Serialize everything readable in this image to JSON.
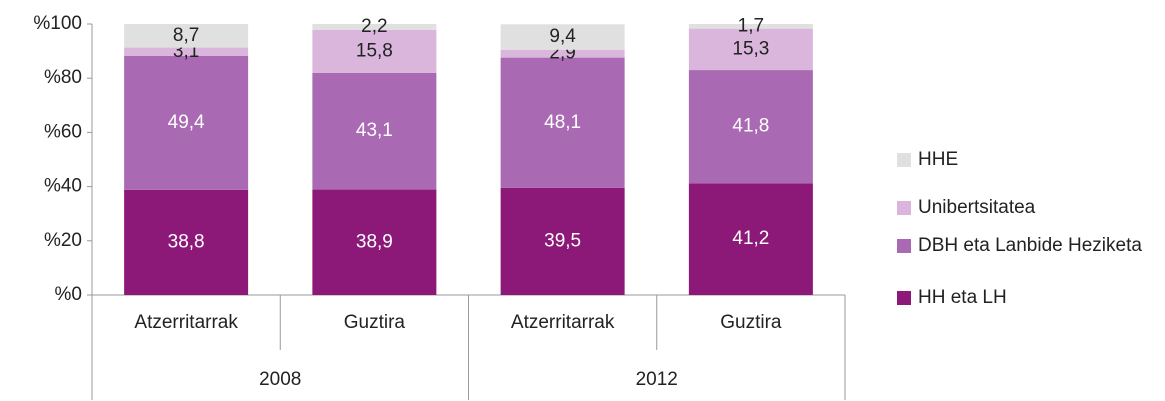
{
  "chart_data": {
    "type": "stacked_bar",
    "categories": [
      "Atzerritarrak",
      "Guztira",
      "Atzerritarrak",
      "Guztira"
    ],
    "groups": [
      "2008",
      "2012"
    ],
    "series": [
      {
        "name": "HH eta LH",
        "color": "#8c1878",
        "values": [
          38.8,
          38.9,
          39.5,
          41.2
        ],
        "value_labels": [
          "38,8",
          "38,9",
          "39,5",
          "41,2"
        ]
      },
      {
        "name": "DBH eta Lanbide Heziketa",
        "color": "#aa6ab3",
        "values": [
          49.4,
          43.1,
          48.1,
          41.8
        ],
        "value_labels": [
          "49,4",
          "43,1",
          "48,1",
          "41,8"
        ]
      },
      {
        "name": "Unibertsitatea",
        "color": "#dab6dd",
        "values": [
          3.1,
          15.8,
          2.9,
          15.3
        ],
        "value_labels": [
          "3,1",
          "15,8",
          "2,9",
          "15,3"
        ]
      },
      {
        "name": "HHE",
        "color": "#e0e0e0",
        "values": [
          8.7,
          2.2,
          9.4,
          1.7
        ],
        "value_labels": [
          "8,7",
          "2,2",
          "9,4",
          "1,7"
        ]
      }
    ],
    "ylim": [
      0,
      100
    ],
    "yticks": [
      {
        "value": 0,
        "label": "%0"
      },
      {
        "value": 20,
        "label": "%20"
      },
      {
        "value": 40,
        "label": "%40"
      },
      {
        "value": 60,
        "label": "%60"
      },
      {
        "value": 80,
        "label": "%80"
      },
      {
        "value": 100,
        "label": "%100"
      }
    ],
    "legend": "right"
  }
}
